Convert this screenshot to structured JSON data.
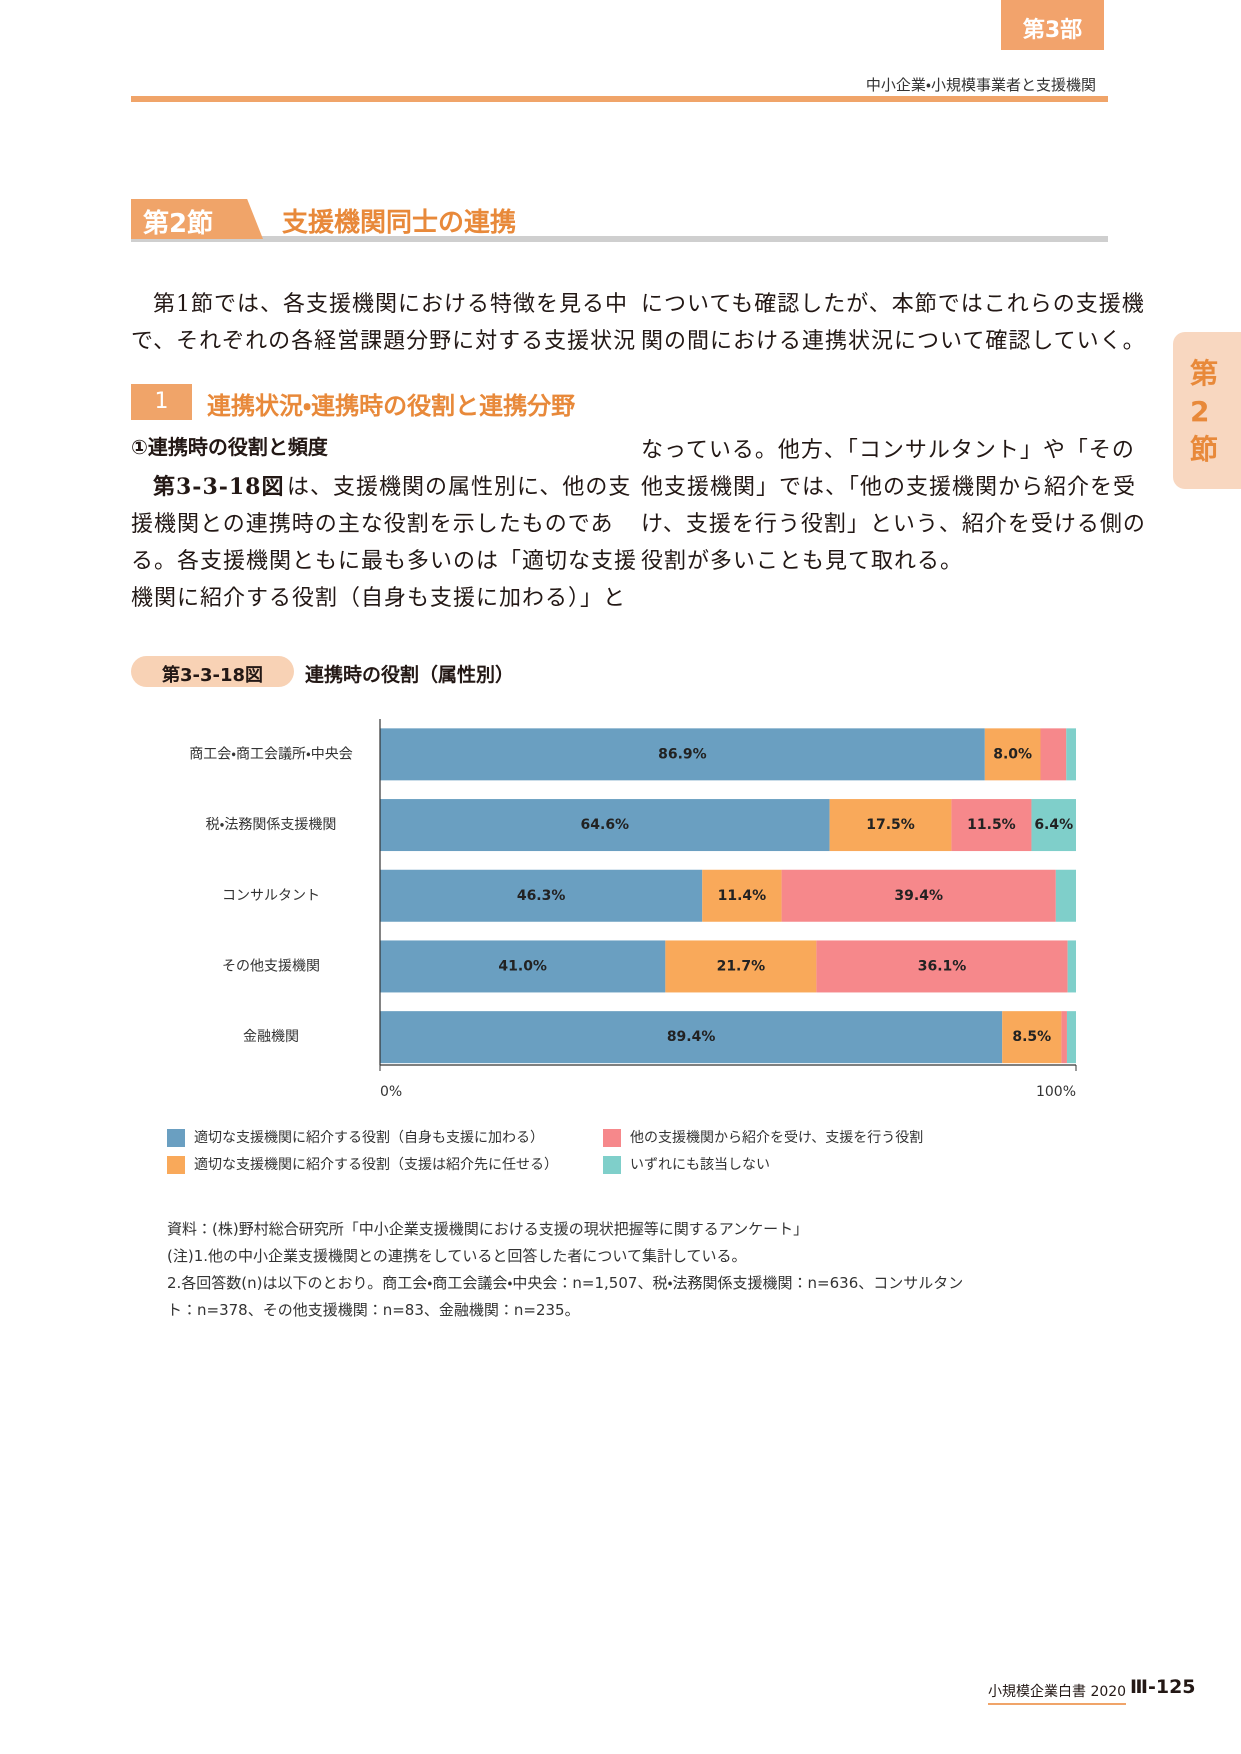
{
  "header": {
    "part_tab": "第3部",
    "running_title": "中小企業・小規模事業者と支援機関"
  },
  "section": {
    "badge": "第2節",
    "title": "支援機関同士の連携",
    "side_tab": "第2節"
  },
  "intro": {
    "left": [
      "第1節では、各支援機関における特徴を見る中",
      "で、それぞれの各経営課題分野に対する支援状況"
    ],
    "right": [
      "についても確認したが、本節ではこれらの支援機",
      "関の間における連携状況について確認していく。"
    ]
  },
  "subsection": {
    "number": "1",
    "title": "連携状況・連携時の役割と連携分野",
    "heading": "①連携時の役割と頻度"
  },
  "body": {
    "lead_bold": "第3-3-18図",
    "left": [
      "は、支援機関の属性別に、他の支",
      "援機関との連携時の主な役割を示したものであ",
      "る。各支援機関ともに最も多いのは「適切な支援",
      "機関に紹介する役割（自身も支援に加わる）」と"
    ],
    "right": [
      "なっている。他方、「コンサルタント」や「その",
      "他支援機関」では、「他の支援機関から紹介を受",
      "け、支援を行う役割」という、紹介を受ける側の",
      "役割が多いことも見て取れる。"
    ]
  },
  "figure": {
    "number": "第3-3-18図"
  },
  "chart_data": {
    "type": "stacked_barh",
    "title": "連携時の役割（属性別）",
    "categories": [
      "商工会・商工会議所・中央会",
      "税・法務関係支援機関",
      "コンサルタント",
      "その他支援機関",
      "金融機関"
    ],
    "series": [
      {
        "name": "適切な支援機関に紹介する役割（自身も支援に加わる）",
        "color": "#6a9fc1",
        "values": [
          86.9,
          64.6,
          46.3,
          41.0,
          89.4
        ],
        "value_labels": [
          "86.9%",
          "64.6%",
          "46.3%",
          "41.0%",
          "89.4%"
        ]
      },
      {
        "name": "適切な支援機関に紹介する役割（支援は紹介先に任せる）",
        "color": "#f9a95a",
        "values": [
          8.0,
          17.5,
          11.4,
          21.7,
          8.5
        ],
        "value_labels": [
          "8.0%",
          "17.5%",
          "11.4%",
          "21.7%",
          "8.5%"
        ]
      },
      {
        "name": "他の支援機関から紹介を受け、支援を行う役割",
        "color": "#f6888b",
        "values": [
          3.7,
          11.5,
          39.4,
          36.1,
          0.8
        ],
        "value_labels": [
          null,
          "11.5%",
          "39.4%",
          "36.1%",
          null
        ]
      },
      {
        "name": "いずれにも該当しない",
        "color": "#7fcfca",
        "values": [
          1.4,
          6.4,
          2.9,
          1.2,
          1.3
        ],
        "value_labels": [
          null,
          "6.4%",
          null,
          null,
          null
        ]
      }
    ],
    "xlim": [
      0,
      100
    ],
    "xticks": [
      {
        "value": 0,
        "label": "0%"
      },
      {
        "value": 100,
        "label": "100%"
      }
    ]
  },
  "notes": [
    "資料：(株)野村総合研究所「中小企業支援機関における支援の現状把握等に関するアンケート」",
    "(注)1.他の中小企業支援機関との連携をしていると回答した者について集計している。",
    "2.各回答数(n)は以下のとおり。商工会・商工会議会・中央会：n=1,507、税・法務関係支援機関：n=636、コンサルタン",
    "ト：n=378、その他支援機関：n=83、金融機関：n=235。"
  ],
  "footer": {
    "book": "小規模企業白書 2020",
    "page": "Ⅲ-125"
  }
}
